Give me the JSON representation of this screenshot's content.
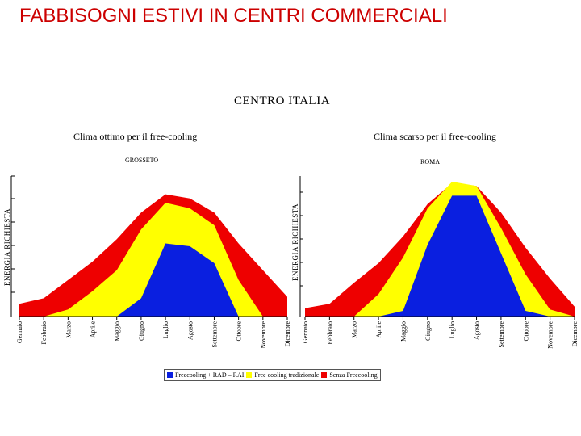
{
  "slide": {
    "title": "FABBISOGNI ESTIVI IN CENTRI COMMERCIALI"
  },
  "figure": {
    "title": "CENTRO  ITALIA"
  },
  "legend": [
    {
      "label": "Freecooling + RAD – RAI",
      "color": "#0a1fe0"
    },
    {
      "label": "Free cooling tradizionale",
      "color": "#ffff00"
    },
    {
      "label": "Senza Freecooling",
      "color": "#ee0000"
    }
  ],
  "chart_data": [
    {
      "type": "area",
      "title": "Clima ottimo per il free-cooling",
      "subtitle": "GROSSETO",
      "ylabel": "ENERGIA RICHIESTA",
      "xlabel": "",
      "ylim": [
        0,
        100
      ],
      "categories": [
        "Gennaio",
        "Febbraio",
        "Marzo",
        "Aprile",
        "Maggio",
        "Giugno",
        "Luglio",
        "Agosto",
        "Settembre",
        "Ottobre",
        "Novembre",
        "Dicembre"
      ],
      "series": [
        {
          "name": "Senza Freecooling",
          "color": "#ee0000",
          "values": [
            9,
            13,
            26,
            39,
            55,
            74,
            87,
            84,
            74,
            52,
            33,
            14
          ]
        },
        {
          "name": "Free cooling tradizionale",
          "color": "#ffff00",
          "values": [
            0,
            0,
            5,
            18,
            33,
            62,
            81,
            77,
            65,
            26,
            0,
            0
          ]
        },
        {
          "name": "Freecooling + RAD – RAI",
          "color": "#0a1fe0",
          "values": [
            0,
            0,
            0,
            0,
            0,
            13,
            52,
            50,
            38,
            0,
            0,
            0
          ]
        }
      ]
    },
    {
      "type": "area",
      "title": "Clima scarso per il free-cooling",
      "subtitle": "ROMA",
      "ylabel": "ENERGIA RICHIESTA",
      "xlabel": "",
      "ylim": [
        0,
        100
      ],
      "categories": [
        "Gennaio",
        "Febbraio",
        "Marzo",
        "Aprile",
        "Maggio",
        "Giugno",
        "Luglio",
        "Agosto",
        "Settembre",
        "Ottobre",
        "Novembre",
        "Dicembre"
      ],
      "series": [
        {
          "name": "Senza Freecooling",
          "color": "#ee0000",
          "values": [
            6,
            9,
            24,
            38,
            57,
            80,
            95,
            93,
            74,
            49,
            27,
            7
          ]
        },
        {
          "name": "Free cooling tradizionale",
          "color": "#ffff00",
          "values": [
            0,
            0,
            0,
            16,
            42,
            77,
            96,
            93,
            63,
            30,
            5,
            0
          ]
        },
        {
          "name": "Freecooling + RAD – RAI",
          "color": "#0a1fe0",
          "values": [
            0,
            0,
            0,
            0,
            4,
            51,
            86,
            86,
            45,
            4,
            0,
            0
          ]
        }
      ]
    }
  ]
}
